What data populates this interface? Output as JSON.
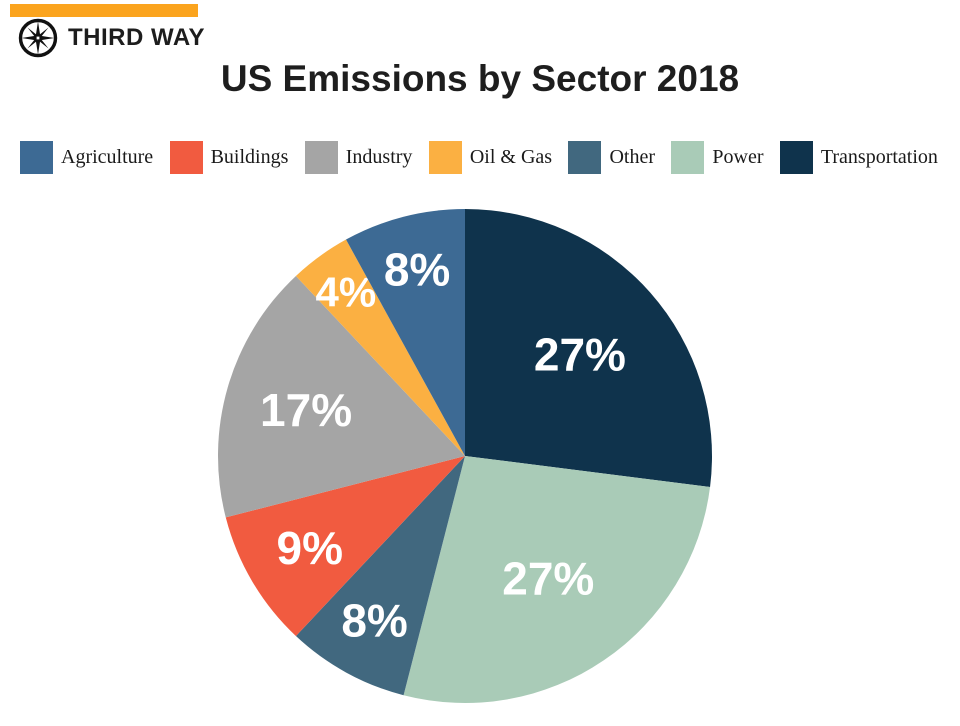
{
  "brand": {
    "name": "THIRD WAY",
    "logo_icon": "compass-star-icon",
    "accent_color": "#fba41e"
  },
  "title": "US Emissions by Sector 2018",
  "chart_data": {
    "type": "pie",
    "title": "US Emissions by Sector 2018",
    "direction": "clockwise",
    "start_angle": "12-oclock",
    "legend_position": "top",
    "label_color": "#ffffff",
    "legend_order": [
      "Agriculture",
      "Buildings",
      "Industry",
      "Oil & Gas",
      "Other",
      "Power",
      "Transportation"
    ],
    "slices": [
      {
        "label": "Transportation",
        "value": 27,
        "pct_label": "27%",
        "color": "#0f334c",
        "label_r": 0.62,
        "label_size": 46
      },
      {
        "label": "Power",
        "value": 27,
        "pct_label": "27%",
        "color": "#a9cbb7",
        "label_r": 0.6,
        "label_size": 46
      },
      {
        "label": "Other",
        "value": 8,
        "pct_label": "8%",
        "color": "#41687f",
        "label_r": 0.76,
        "label_size": 46
      },
      {
        "label": "Buildings",
        "value": 9,
        "pct_label": "9%",
        "color": "#f15b40",
        "label_r": 0.73,
        "label_size": 46
      },
      {
        "label": "Industry",
        "value": 17,
        "pct_label": "17%",
        "color": "#a5a5a5",
        "label_r": 0.67,
        "label_size": 46
      },
      {
        "label": "Oil & Gas",
        "value": 4,
        "pct_label": "4%",
        "color": "#fbb042",
        "label_r": 0.82,
        "label_size": 42
      },
      {
        "label": "Agriculture",
        "value": 8,
        "pct_label": "8%",
        "color": "#3d6a94",
        "label_r": 0.78,
        "label_size": 46
      }
    ]
  }
}
